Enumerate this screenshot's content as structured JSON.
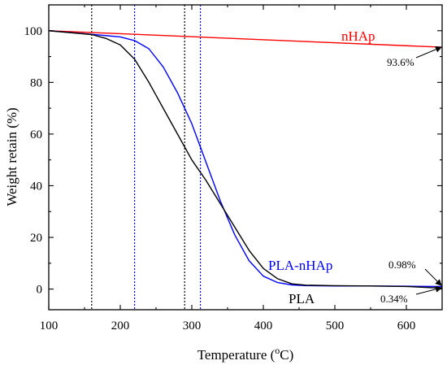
{
  "chart_data": {
    "type": "line",
    "title": "",
    "xlabel_main": "Temperature (",
    "xlabel_sup": "o",
    "xlabel_end": "C)",
    "ylabel": "Weight retain (%)",
    "xlim": [
      100,
      650
    ],
    "ylim": [
      -8,
      110
    ],
    "xticks": [
      100,
      200,
      300,
      400,
      500,
      600
    ],
    "yticks": [
      0,
      20,
      40,
      60,
      80,
      100
    ],
    "grid": false,
    "series": [
      {
        "name": "nHAp",
        "color": "#ff0000",
        "x": [
          100,
          650
        ],
        "y": [
          100,
          93.6
        ]
      },
      {
        "name": "PLA-nHAp",
        "color": "#0000ff",
        "x": [
          100,
          160,
          200,
          220,
          240,
          260,
          280,
          300,
          320,
          340,
          360,
          380,
          400,
          420,
          440,
          460,
          500,
          550,
          600,
          650
        ],
        "y": [
          100,
          98.6,
          97.6,
          96.2,
          93,
          86,
          76,
          64,
          49,
          34,
          21,
          11,
          5,
          2.5,
          1.6,
          1.3,
          1.2,
          1.2,
          1.1,
          0.98
        ]
      },
      {
        "name": "PLA",
        "color": "#000000",
        "x": [
          100,
          160,
          180,
          200,
          220,
          240,
          260,
          280,
          300,
          320,
          340,
          360,
          380,
          400,
          420,
          440,
          460,
          500,
          550,
          600,
          650
        ],
        "y": [
          100,
          98.5,
          97,
          94.5,
          89,
          80,
          70,
          60,
          50,
          42,
          33,
          24,
          15,
          8,
          4,
          2,
          1.5,
          1.3,
          1.2,
          1.0,
          0.34
        ]
      }
    ],
    "vlines": [
      {
        "x": 160,
        "color": "#000000"
      },
      {
        "x": 220,
        "color": "#0000ff"
      },
      {
        "x": 290,
        "color": "#000000"
      },
      {
        "x": 312,
        "color": "#0000ff"
      }
    ],
    "annotations": [
      {
        "text": "93.6%",
        "x": 650,
        "y": 93.6
      },
      {
        "text": "0.98%",
        "x": 650,
        "y": 0.98
      },
      {
        "text": "0.34%",
        "x": 650,
        "y": 0.34
      }
    ]
  }
}
